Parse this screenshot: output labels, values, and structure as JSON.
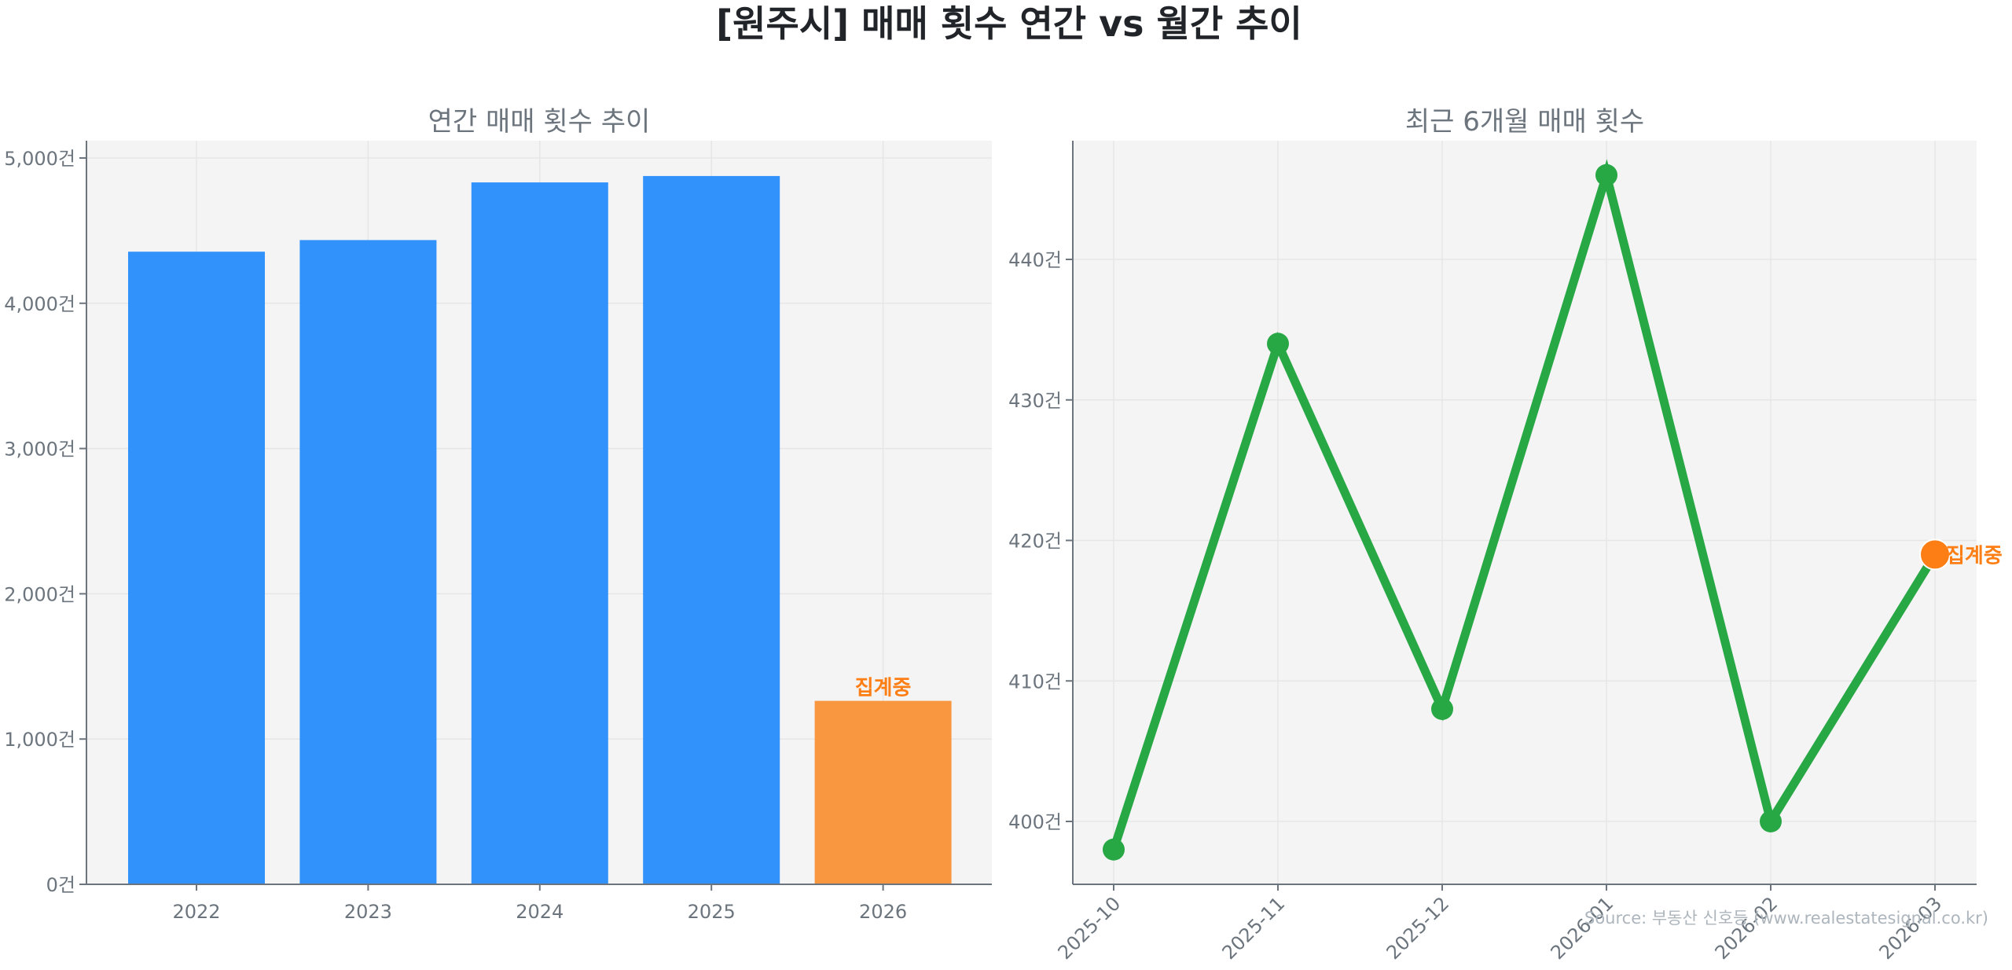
{
  "figure": {
    "title": "[원주시] 매매 횟수 연간 vs 월간 추이",
    "source": "Source: 부동산 신호등 (www.realestatesignal.co.kr)"
  },
  "colors": {
    "bar_complete": "#3192fb",
    "bar_partial": "#f99740",
    "line": "#28a745",
    "marker_partial": "#fd7e14",
    "annotation": "#fd7e14",
    "plot_bg": "#f4f4f4"
  },
  "chart_data": [
    {
      "type": "bar",
      "title": "연간 매매 횟수 추이",
      "xlabel": "",
      "ylabel": "",
      "categories": [
        "2022",
        "2023",
        "2024",
        "2025",
        "2026"
      ],
      "values": [
        4355,
        4435,
        4832,
        4876,
        1263
      ],
      "partial_flags": [
        false,
        false,
        false,
        false,
        true
      ],
      "annotation": {
        "category": "2026",
        "text": "집계중"
      },
      "ylim": [
        0,
        5100
      ],
      "yticks": [
        0,
        1000,
        2000,
        3000,
        4000,
        5000
      ],
      "ytick_labels": [
        "0건",
        "1,000건",
        "2,000건",
        "3,000건",
        "4,000건",
        "5,000건"
      ],
      "grid": true
    },
    {
      "type": "line",
      "title": "최근 6개월 매매 횟수",
      "xlabel": "",
      "ylabel": "",
      "x": [
        "2025-10",
        "2025-11",
        "2025-12",
        "2026-01",
        "2026-02",
        "2026-03"
      ],
      "values": [
        398,
        434,
        408,
        446,
        400,
        419
      ],
      "partial_flags": [
        false,
        false,
        false,
        false,
        false,
        true
      ],
      "annotation": {
        "x": "2026-03",
        "text": "집계중"
      },
      "ylim": [
        396,
        447
      ],
      "yticks": [
        400,
        410,
        420,
        430,
        440
      ],
      "ytick_labels": [
        "400건",
        "410건",
        "420건",
        "430건",
        "440건"
      ],
      "xtick_rotation": 45,
      "grid": true
    }
  ]
}
